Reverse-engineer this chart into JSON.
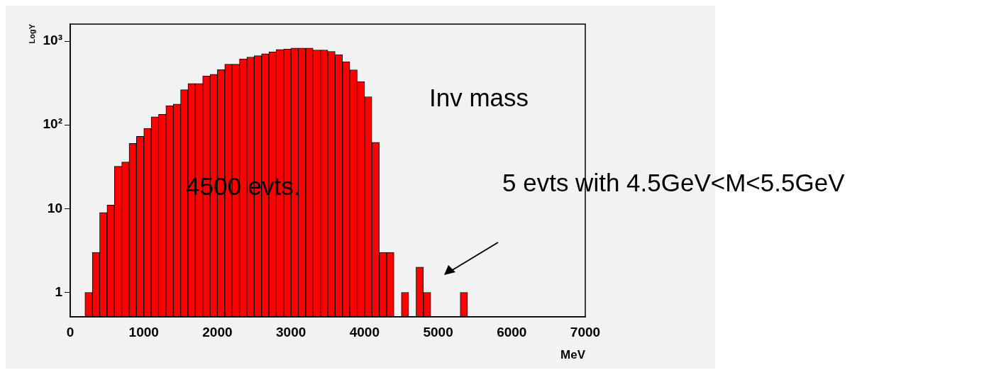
{
  "chart_data": {
    "type": "histogram",
    "xlabel": "MeV",
    "ylabel": "LogY",
    "bins": [
      200,
      300,
      400,
      500,
      600,
      700,
      800,
      900,
      1000,
      1100,
      1200,
      1300,
      1400,
      1500,
      1600,
      1700,
      1800,
      1900,
      2000,
      2100,
      2200,
      2300,
      2400,
      2500,
      2600,
      2700,
      2800,
      2900,
      3000,
      3100,
      3200,
      3300,
      3400,
      3500,
      3600,
      3700,
      3800,
      3900,
      4000,
      4100,
      4200,
      4300,
      4400,
      4500,
      4600,
      4700,
      4800,
      4900,
      5000,
      5100,
      5200,
      5300,
      5400
    ],
    "values": [
      1,
      3,
      9,
      11,
      32,
      36,
      60,
      73,
      91,
      125,
      134,
      170,
      177,
      263,
      312,
      312,
      385,
      402,
      456,
      531,
      531,
      614,
      646,
      671,
      708,
      746,
      796,
      807,
      828,
      828,
      828,
      785,
      785,
      755,
      690,
      568,
      455,
      329,
      217,
      62,
      3,
      3,
      null,
      1,
      null,
      2,
      1,
      null,
      null,
      null,
      null,
      1
    ],
    "color": "#ff0000",
    "log": "y",
    "grid": false,
    "legend": false,
    "xlim": [
      0,
      7000
    ],
    "xticks": [
      0,
      1000,
      2000,
      3000,
      4000,
      5000,
      6000,
      7000
    ],
    "ylim": [
      0.51,
      1600
    ],
    "yticks": [
      1,
      10,
      {
        "value": 100,
        "label": "10²"
      },
      {
        "value": 1000,
        "label": "10³"
      }
    ],
    "annotations": [
      "Inv mass",
      "4500 evts.",
      "5 evts  with 4.5GeV<M<5.5GeV"
    ]
  }
}
